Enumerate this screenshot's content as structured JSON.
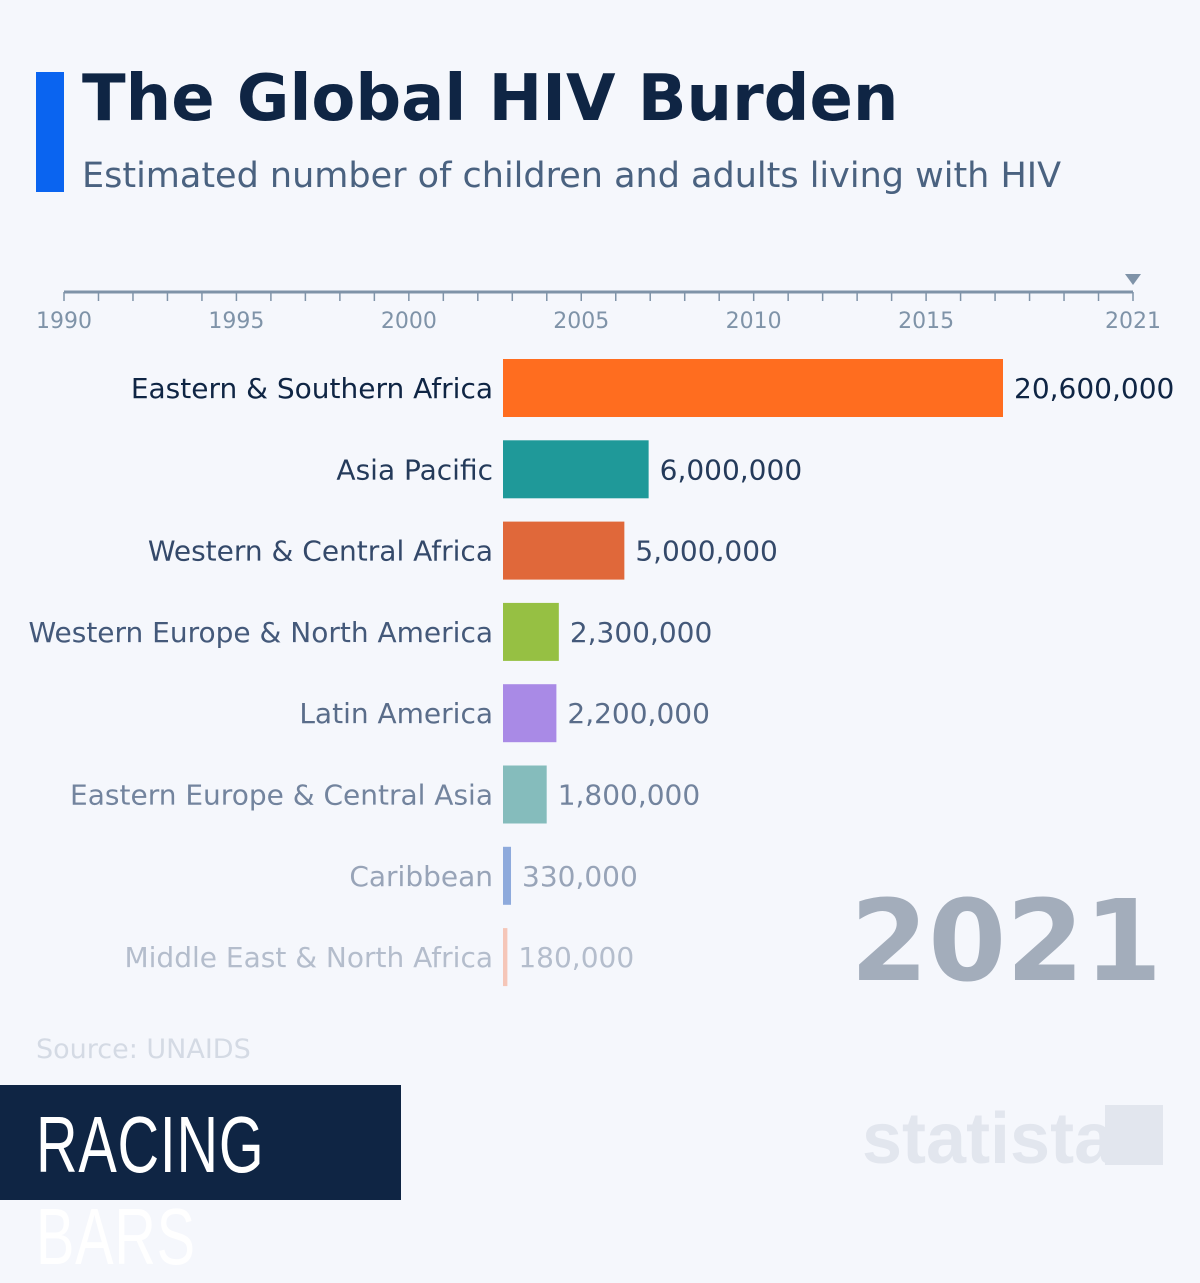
{
  "title": "The Global HIV Burden",
  "subtitle": "Estimated number of children and adults living with HIV",
  "source": "Source: UNAIDS",
  "brand_label": "RACING BARS",
  "logo_text": "statista",
  "chart_data": {
    "type": "bar",
    "orientation": "horizontal",
    "current_year": "2021",
    "timeline": {
      "start": 1990,
      "end": 2021,
      "tick_labels": [
        "1990",
        "1995",
        "2000",
        "2005",
        "2010",
        "2015",
        "2021"
      ]
    },
    "categories": [
      "Eastern & Southern Africa",
      "Asia Pacific",
      "Western & Central Africa",
      "Western Europe & North America",
      "Latin America",
      "Eastern Europe & Central Asia",
      "Caribbean",
      "Middle East & North Africa"
    ],
    "values": [
      20600000,
      6000000,
      5000000,
      2300000,
      2200000,
      1800000,
      330000,
      180000
    ],
    "value_labels": [
      "20,600,000",
      "6,000,000",
      "5,000,000",
      "2,300,000",
      "2,200,000",
      "1,800,000",
      "330,000",
      "180,000"
    ],
    "colors": [
      "#ff6d1f",
      "#1f9999",
      "#e0683a",
      "#96c043",
      "#a98ae6",
      "#85bcbc",
      "#8eaadc",
      "#f5c6b8"
    ],
    "label_colors": [
      "#0f2544",
      "#243a5a",
      "#34496a",
      "#44597a",
      "#5a6d8a",
      "#73849e",
      "#98a4b8",
      "#b4bdcc"
    ]
  }
}
